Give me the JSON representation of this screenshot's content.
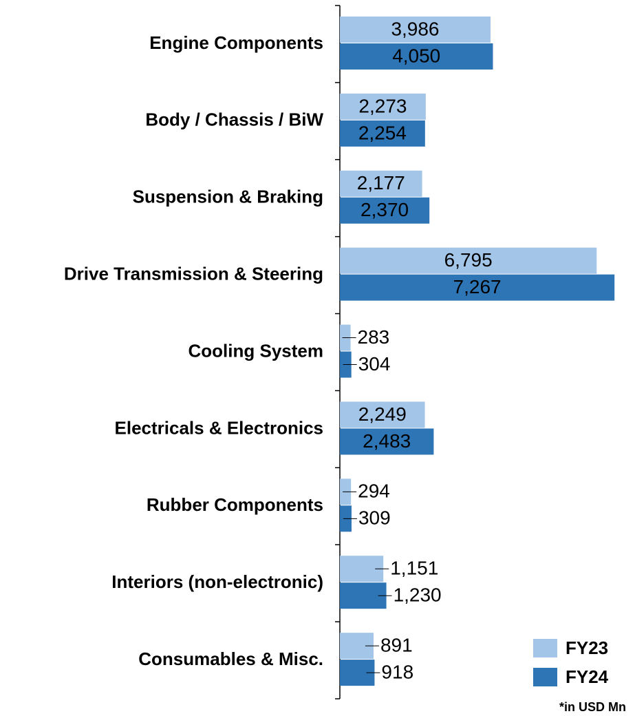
{
  "chart_data": {
    "type": "barh",
    "categories": [
      "Engine Components",
      "Body / Chassis / BiW",
      "Suspension & Braking",
      "Drive Transmission & Steering",
      "Cooling System",
      "Electricals & Electronics",
      "Rubber Components",
      "Interiors (non-electronic)",
      "Consumables & Misc."
    ],
    "series": [
      {
        "name": "FY23",
        "color": "#a3c5e8",
        "values": [
          3986,
          2273,
          2177,
          6795,
          283,
          2249,
          294,
          1151,
          891
        ],
        "value_labels": [
          "3,986",
          "2,273",
          "2,177",
          "6,795",
          "283",
          "2,249",
          "294",
          "1,151",
          "891"
        ]
      },
      {
        "name": "FY24",
        "color": "#2e75b6",
        "values": [
          4050,
          2254,
          2370,
          7267,
          304,
          2483,
          309,
          1230,
          918
        ],
        "value_labels": [
          "4,050",
          "2,254",
          "2,370",
          "7,267",
          "304",
          "2,483",
          "309",
          "1,230",
          "918"
        ]
      }
    ],
    "xlim": [
      0,
      7500
    ],
    "note": "*in USD Mn",
    "legend": "bottom-right"
  }
}
